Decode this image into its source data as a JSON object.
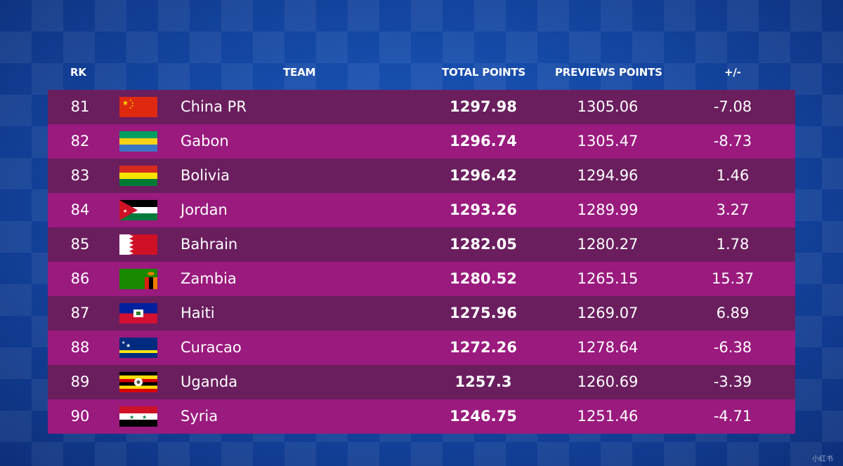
{
  "headers": {
    "rk": "RK",
    "team": "TEAM",
    "total": "TOTAL POINTS",
    "prev": "PREVIEWS POINTS",
    "diff": "+/-"
  },
  "rows": [
    {
      "rk": "81",
      "team": "China PR",
      "total": "1297.98",
      "prev": "1305.06",
      "diff": "-7.08",
      "flag": "china-flag-icon"
    },
    {
      "rk": "82",
      "team": "Gabon",
      "total": "1296.74",
      "prev": "1305.47",
      "diff": "-8.73",
      "flag": "gabon-flag-icon"
    },
    {
      "rk": "83",
      "team": "Bolivia",
      "total": "1296.42",
      "prev": "1294.96",
      "diff": "1.46",
      "flag": "bolivia-flag-icon"
    },
    {
      "rk": "84",
      "team": "Jordan",
      "total": "1293.26",
      "prev": "1289.99",
      "diff": "3.27",
      "flag": "jordan-flag-icon"
    },
    {
      "rk": "85",
      "team": "Bahrain",
      "total": "1282.05",
      "prev": "1280.27",
      "diff": "1.78",
      "flag": "bahrain-flag-icon"
    },
    {
      "rk": "86",
      "team": "Zambia",
      "total": "1280.52",
      "prev": "1265.15",
      "diff": "15.37",
      "flag": "zambia-flag-icon"
    },
    {
      "rk": "87",
      "team": "Haiti",
      "total": "1275.96",
      "prev": "1269.07",
      "diff": "6.89",
      "flag": "haiti-flag-icon"
    },
    {
      "rk": "88",
      "team": "Curacao",
      "total": "1272.26",
      "prev": "1278.64",
      "diff": "-6.38",
      "flag": "curacao-flag-icon"
    },
    {
      "rk": "89",
      "team": "Uganda",
      "total": "1257.3",
      "prev": "1260.69",
      "diff": "-3.39",
      "flag": "uganda-flag-icon"
    },
    {
      "rk": "90",
      "team": "Syria",
      "total": "1246.75",
      "prev": "1251.46",
      "diff": "-4.71",
      "flag": "syria-flag-icon"
    }
  ],
  "colors": {
    "row_dark": "#6a1e5e",
    "row_light": "#9a1a7e",
    "background": "#154aa8"
  },
  "watermark": "小红书"
}
